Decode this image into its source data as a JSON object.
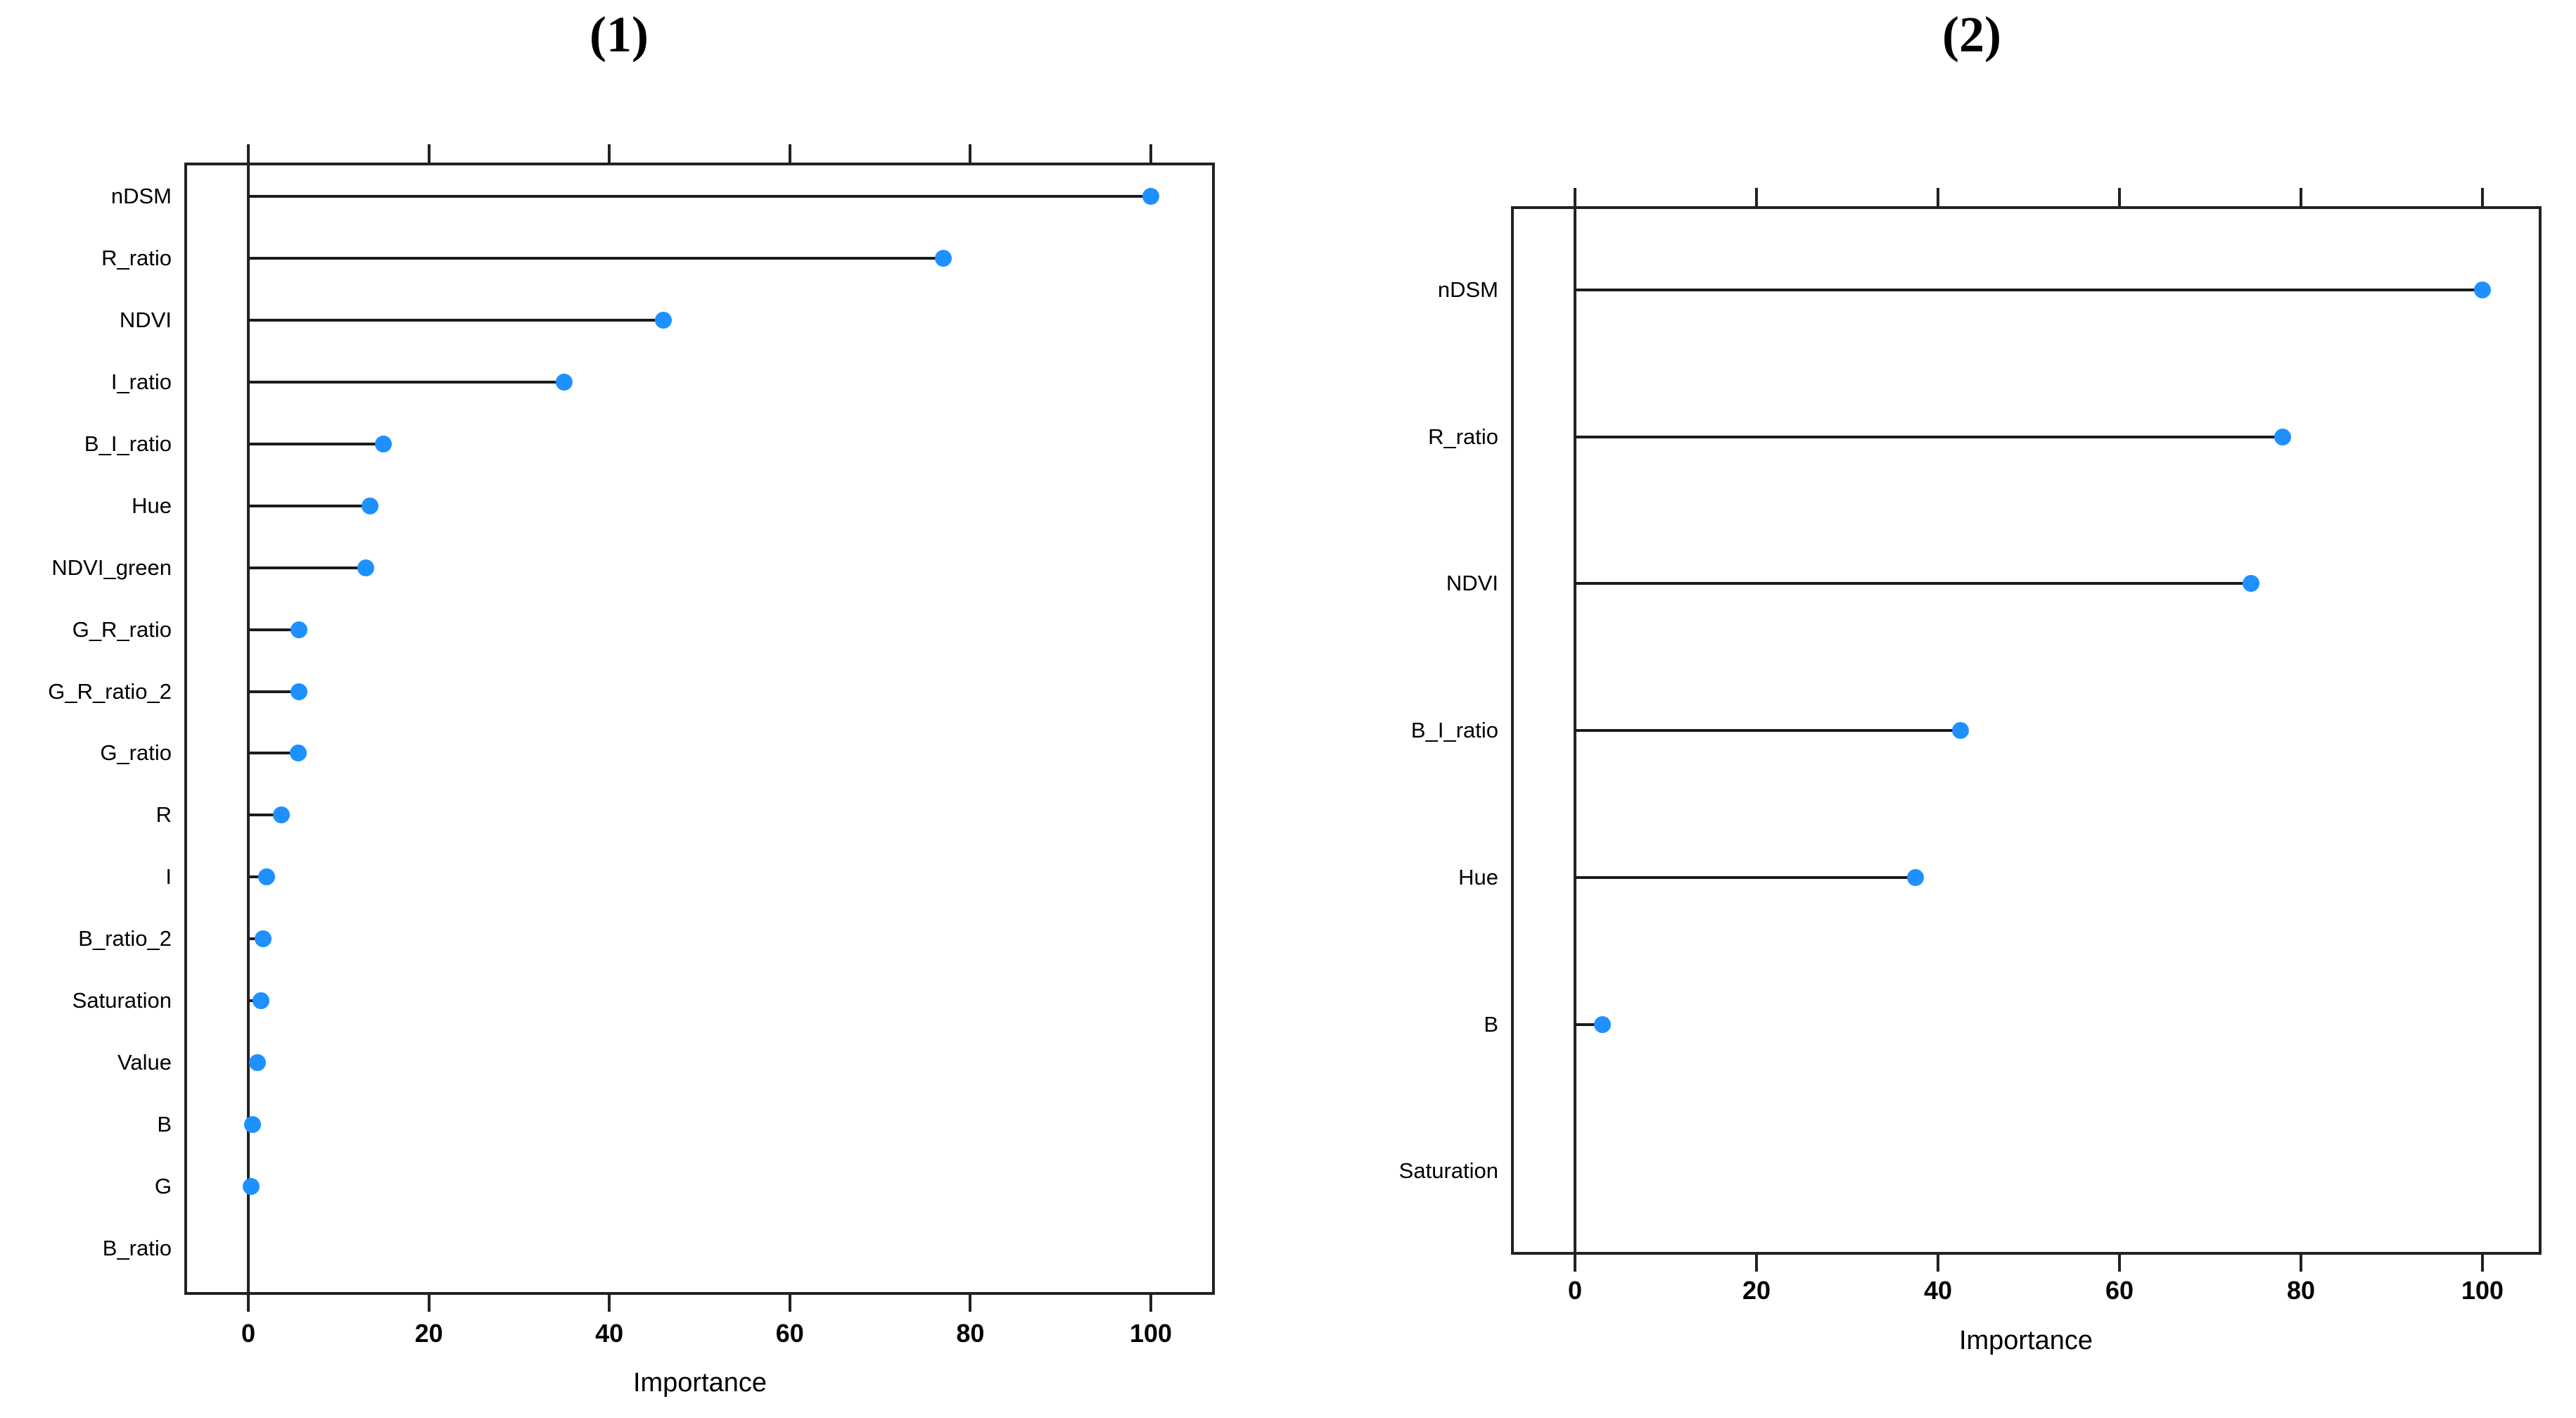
{
  "colors": {
    "marker": "#1e90ff",
    "line": "#1c1c1c",
    "box": "#222222",
    "text": "#000000",
    "background": "#ffffff"
  },
  "chart_data": [
    {
      "type": "scatter",
      "variant": "lollipop-dot-importance",
      "panel_label": "(1)",
      "xlabel": "Importance",
      "x_ticks": [
        0,
        20,
        40,
        60,
        80,
        100
      ],
      "xlim": [
        -7,
        107
      ],
      "grid": false,
      "legend": "none",
      "categories": [
        "nDSM",
        "R_ratio",
        "NDVI",
        "I_ratio",
        "B_I_ratio",
        "Hue",
        "NDVI_green",
        "G_R_ratio",
        "G_R_ratio_2",
        "G_ratio",
        "R",
        "I",
        "B_ratio_2",
        "Saturation",
        "Value",
        "B",
        "G",
        "B_ratio"
      ],
      "values": [
        100,
        77,
        46,
        35,
        15,
        13.5,
        13,
        5.6,
        5.6,
        5.5,
        3.7,
        2,
        1.6,
        1.4,
        1,
        0.5,
        0.3,
        null
      ]
    },
    {
      "type": "scatter",
      "variant": "lollipop-dot-importance",
      "panel_label": "(2)",
      "xlabel": "Importance",
      "x_ticks": [
        0,
        20,
        40,
        60,
        80,
        100
      ],
      "xlim": [
        -7,
        107
      ],
      "grid": false,
      "legend": "none",
      "categories": [
        "nDSM",
        "R_ratio",
        "NDVI",
        "B_I_ratio",
        "Hue",
        "B",
        "Saturation"
      ],
      "values": [
        100,
        78,
        74.5,
        42.5,
        37.5,
        3,
        null
      ]
    }
  ]
}
